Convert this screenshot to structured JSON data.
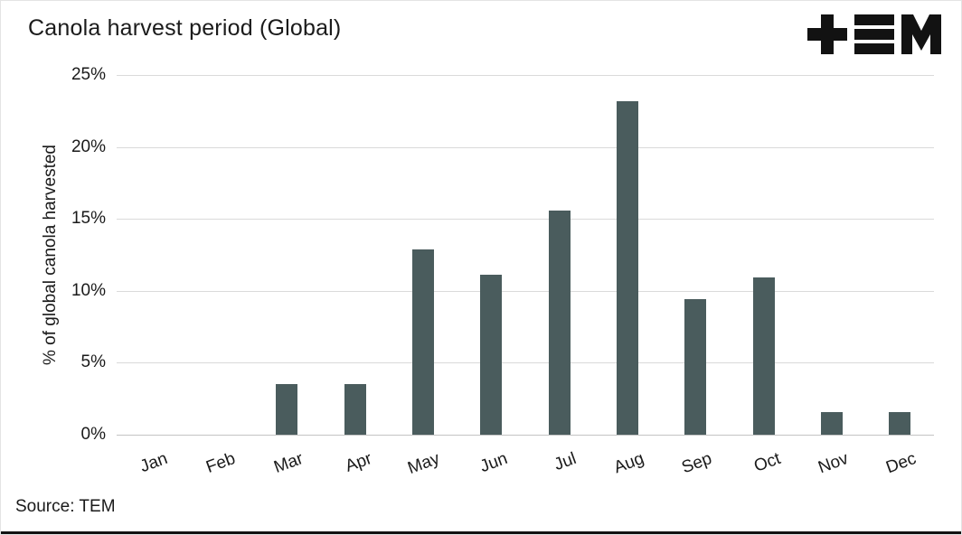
{
  "header": {
    "title": "Canola harvest period (Global)",
    "logo": "tem-logo"
  },
  "footer": {
    "source": "Source: TEM"
  },
  "colors": {
    "bar": "#4a5c5d",
    "gridline": "#dadada",
    "text": "#1a1a1a",
    "logo": "#121212"
  },
  "chart_data": {
    "type": "bar",
    "title": "Canola harvest period (Global)",
    "categories": [
      "Jan",
      "Feb",
      "Mar",
      "Apr",
      "May",
      "Jun",
      "Jul",
      "Aug",
      "Sep",
      "Oct",
      "Nov",
      "Dec"
    ],
    "values": [
      0,
      0,
      3.5,
      3.5,
      12.9,
      11.1,
      15.6,
      23.2,
      9.4,
      10.9,
      1.6,
      1.6
    ],
    "xlabel": "",
    "ylabel": "% of global canola harvested",
    "ylim": [
      0,
      25
    ],
    "yticks": [
      0,
      5,
      10,
      15,
      20,
      25
    ],
    "ytick_labels": [
      "0%",
      "5%",
      "10%",
      "15%",
      "20%",
      "25%"
    ],
    "grid": true,
    "legend": "none",
    "bar_color": "#4a5c5d",
    "source": "Source: TEM"
  }
}
